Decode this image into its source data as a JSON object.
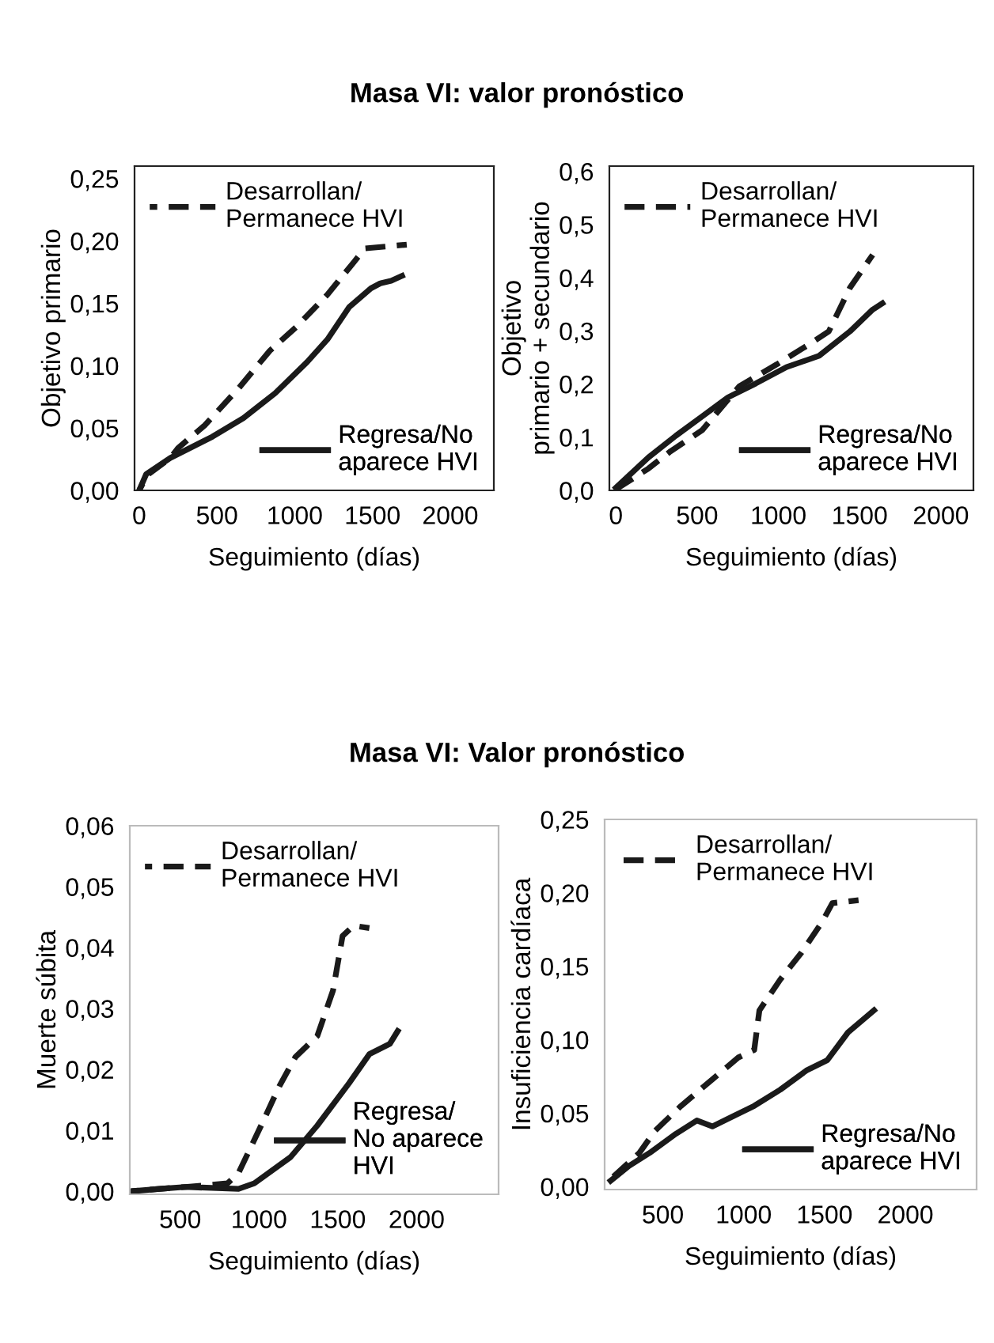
{
  "chart_data": [
    {
      "type": "line",
      "title": "Masa VI: valor pronóstico",
      "xlabel": "Seguimiento (días)",
      "ylabel": "Objetivo primario",
      "legend": "top left",
      "grid": false,
      "xlim": [
        -30,
        2280
      ],
      "xticks": [
        0,
        500,
        1000,
        1500,
        2000
      ],
      "ylim": [
        0,
        0.26
      ],
      "yticks": [
        {
          "value": 0,
          "label": "0,00"
        },
        {
          "value": 0.05,
          "label": "0,05"
        },
        {
          "value": 0.1,
          "label": "0,10"
        },
        {
          "value": 0.15,
          "label": "0,15"
        },
        {
          "value": 0.2,
          "label": "0,20"
        },
        {
          "value": 0.25,
          "label": "0,25"
        }
      ],
      "series": [
        {
          "name": "Desarrollan/\nPermanece HVI",
          "color": "#1a1a1a",
          "line_style": "dashed",
          "x": [
            0,
            50,
            200,
            250,
            420,
            640,
            840,
            1010,
            1210,
            1380,
            1450,
            1720
          ],
          "values": [
            0,
            0.012,
            0.026,
            0.034,
            0.052,
            0.082,
            0.112,
            0.131,
            0.157,
            0.183,
            0.194,
            0.197
          ]
        },
        {
          "name": "Regresa/No\naparece HVI",
          "color": "#1a1a1a",
          "line_style": "solid",
          "x": [
            0,
            45,
            200,
            470,
            670,
            875,
            1080,
            1210,
            1350,
            1490,
            1550,
            1620,
            1690
          ],
          "values": [
            0,
            0.013,
            0.026,
            0.043,
            0.058,
            0.078,
            0.103,
            0.121,
            0.147,
            0.162,
            0.166,
            0.168,
            0.172
          ]
        }
      ]
    },
    {
      "type": "line",
      "xlabel": "Seguimiento (días)",
      "ylabel": "Objetivo\nprimario + secundario",
      "legend": "top left",
      "grid": false,
      "xlim": [
        -40,
        2200
      ],
      "xticks": [
        0,
        500,
        1000,
        1500,
        2000
      ],
      "ylim": [
        0,
        0.61
      ],
      "yticks": [
        {
          "value": 0,
          "label": "0,0"
        },
        {
          "value": 0.1,
          "label": "0,1"
        },
        {
          "value": 0.2,
          "label": "0,2"
        },
        {
          "value": 0.3,
          "label": "0,3"
        },
        {
          "value": 0.4,
          "label": "0,4"
        },
        {
          "value": 0.5,
          "label": "0,5"
        },
        {
          "value": 0.6,
          "label": "0,6"
        }
      ],
      "series": [
        {
          "name": "Desarrollan/\nPermanece HVI",
          "color": "#1a1a1a",
          "line_style": "dashed",
          "x": [
            0,
            200,
            330,
            530,
            760,
            990,
            1180,
            1310,
            1440,
            1580
          ],
          "values": [
            0.002,
            0.041,
            0.072,
            0.113,
            0.196,
            0.237,
            0.273,
            0.299,
            0.381,
            0.443
          ]
        },
        {
          "name": "Regresa/No\naparece HVI",
          "color": "#1a1a1a",
          "line_style": "solid",
          "x": [
            0,
            200,
            370,
            530,
            690,
            860,
            1050,
            1250,
            1440,
            1580,
            1640
          ],
          "values": [
            0.005,
            0.062,
            0.103,
            0.139,
            0.175,
            0.201,
            0.232,
            0.253,
            0.299,
            0.34,
            0.352
          ]
        }
      ]
    },
    {
      "type": "line",
      "title": "Masa VI: Valor pronóstico",
      "xlabel": "Seguimiento (días)",
      "ylabel": "Muerte súbita",
      "legend": "top left",
      "grid": false,
      "xlim": [
        180,
        2520
      ],
      "xticks": [
        500,
        1000,
        1500,
        2000
      ],
      "ylim": [
        -0.0005,
        0.06
      ],
      "yticks": [
        {
          "value": 0,
          "label": "0,00"
        },
        {
          "value": 0.01,
          "label": "0,01"
        },
        {
          "value": 0.02,
          "label": "0,02"
        },
        {
          "value": 0.03,
          "label": "0,03"
        },
        {
          "value": 0.04,
          "label": "0,04"
        },
        {
          "value": 0.05,
          "label": "0,05"
        },
        {
          "value": 0.06,
          "label": "0,06"
        }
      ],
      "series": [
        {
          "name": "Desarrollan/\nPermanece HVI",
          "color": "#1a1a1a",
          "line_style": "dashed",
          "x": [
            190,
            370,
            530,
            800,
            870,
            1030,
            1130,
            1230,
            1370,
            1470,
            1530,
            1600,
            1700
          ],
          "values": [
            0,
            0.0004,
            0.0007,
            0.0013,
            0.003,
            0.0117,
            0.0173,
            0.022,
            0.0255,
            0.033,
            0.0419,
            0.0436,
            0.0432
          ]
        },
        {
          "name": "Regresa/\nNo aparece\nHVI",
          "color": "#1a1a1a",
          "line_style": "solid",
          "x": [
            190,
            370,
            530,
            870,
            970,
            1200,
            1370,
            1570,
            1700,
            1830,
            1880
          ],
          "values": [
            0,
            0.0004,
            0.0007,
            0.0004,
            0.0013,
            0.0056,
            0.0108,
            0.0177,
            0.0225,
            0.0242,
            0.0263
          ]
        }
      ]
    },
    {
      "type": "line",
      "xlabel": "Seguimiento (días)",
      "ylabel": "Insuficiencia cardíaca",
      "legend": "top left",
      "grid": false,
      "xlim": [
        140,
        2440
      ],
      "xticks": [
        500,
        1000,
        1500,
        2000
      ],
      "ylim": [
        -0.002,
        0.25
      ],
      "yticks": [
        {
          "value": 0,
          "label": "0,00"
        },
        {
          "value": 0.05,
          "label": "0,05"
        },
        {
          "value": 0.1,
          "label": "0,10"
        },
        {
          "value": 0.15,
          "label": "0,15"
        },
        {
          "value": 0.2,
          "label": "0,20"
        },
        {
          "value": 0.25,
          "label": "0,25"
        }
      ],
      "series": [
        {
          "name": "Desarrollan/\nPermanece HVI",
          "color": "#1a1a1a",
          "line_style": "dashed",
          "x": [
            177,
            355,
            452,
            613,
            806,
            968,
            1065,
            1097,
            1226,
            1355,
            1484,
            1548,
            1710
          ],
          "values": [
            0.005,
            0.023,
            0.038,
            0.055,
            0.073,
            0.088,
            0.093,
            0.12,
            0.141,
            0.159,
            0.18,
            0.193,
            0.195
          ]
        },
        {
          "name": "Regresa/No\naparece HVI",
          "color": "#1a1a1a",
          "line_style": "solid",
          "x": [
            177,
            290,
            419,
            581,
            710,
            806,
            935,
            1065,
            1226,
            1387,
            1516,
            1645,
            1806
          ],
          "values": [
            0.004,
            0.014,
            0.023,
            0.036,
            0.045,
            0.041,
            0.048,
            0.055,
            0.066,
            0.079,
            0.086,
            0.105,
            0.12
          ]
        }
      ]
    }
  ]
}
